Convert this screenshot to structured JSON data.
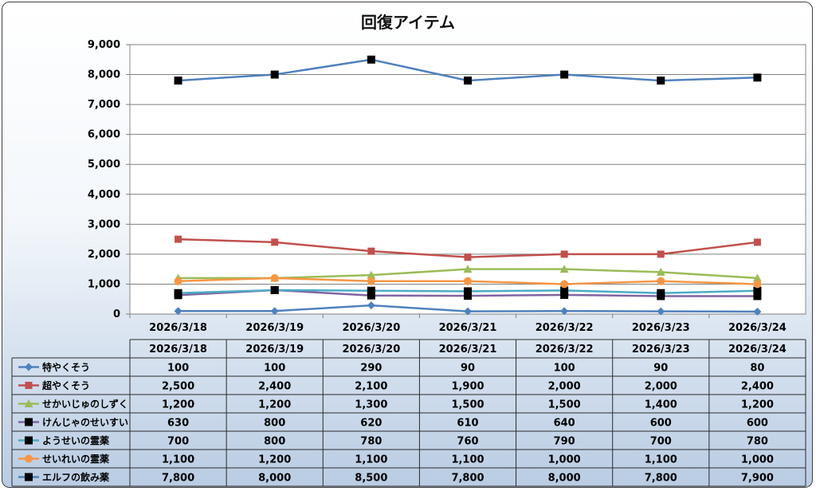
{
  "chart_data": {
    "type": "line",
    "title": "回復アイテム",
    "xlabel": "",
    "ylabel": "",
    "categories": [
      "2026/3/18",
      "2026/3/19",
      "2026/3/20",
      "2026/3/21",
      "2026/3/22",
      "2026/3/23",
      "2026/3/24"
    ],
    "ylim": [
      0,
      9000
    ],
    "yticks": [
      "0",
      "1,000",
      "2,000",
      "3,000",
      "4,000",
      "5,000",
      "6,000",
      "7,000",
      "8,000",
      "9,000"
    ],
    "grid": true,
    "legend": "data-table",
    "series": [
      {
        "name": "特やくそう",
        "color": "#4f81bd",
        "marker": "diamond",
        "values": [
          100,
          100,
          290,
          90,
          100,
          90,
          80
        ],
        "labels": [
          "100",
          "100",
          "290",
          "90",
          "100",
          "90",
          "80"
        ]
      },
      {
        "name": "超やくそう",
        "color": "#c0504d",
        "marker": "square",
        "values": [
          2500,
          2400,
          2100,
          1900,
          2000,
          2000,
          2400
        ],
        "labels": [
          "2,500",
          "2,400",
          "2,100",
          "1,900",
          "2,000",
          "2,000",
          "2,400"
        ]
      },
      {
        "name": "せかいじゅのしずく",
        "color": "#9bbb59",
        "marker": "triangle",
        "values": [
          1200,
          1200,
          1300,
          1500,
          1500,
          1400,
          1200
        ],
        "labels": [
          "1,200",
          "1,200",
          "1,300",
          "1,500",
          "1,500",
          "1,400",
          "1,200"
        ]
      },
      {
        "name": "けんじゃのせいすい",
        "color": "#8064a2",
        "marker": "square-black",
        "values": [
          630,
          800,
          620,
          610,
          640,
          600,
          600
        ],
        "labels": [
          "630",
          "800",
          "620",
          "610",
          "640",
          "600",
          "600"
        ]
      },
      {
        "name": "ようせいの霊薬",
        "color": "#4bacc6",
        "marker": "square-black",
        "values": [
          700,
          800,
          780,
          760,
          790,
          700,
          780
        ],
        "labels": [
          "700",
          "800",
          "780",
          "760",
          "790",
          "700",
          "780"
        ]
      },
      {
        "name": "せいれいの霊薬",
        "color": "#f79646",
        "marker": "circle",
        "values": [
          1100,
          1200,
          1100,
          1100,
          1000,
          1100,
          1000
        ],
        "labels": [
          "1,100",
          "1,200",
          "1,100",
          "1,100",
          "1,000",
          "1,100",
          "1,000"
        ]
      },
      {
        "name": "エルフの飲み薬",
        "color": "#4f81bd",
        "marker": "square-black",
        "values": [
          7800,
          8000,
          8500,
          7800,
          8000,
          7800,
          7900
        ],
        "labels": [
          "7,800",
          "8,000",
          "8,500",
          "7,800",
          "8,000",
          "7,800",
          "7,900"
        ]
      }
    ]
  }
}
